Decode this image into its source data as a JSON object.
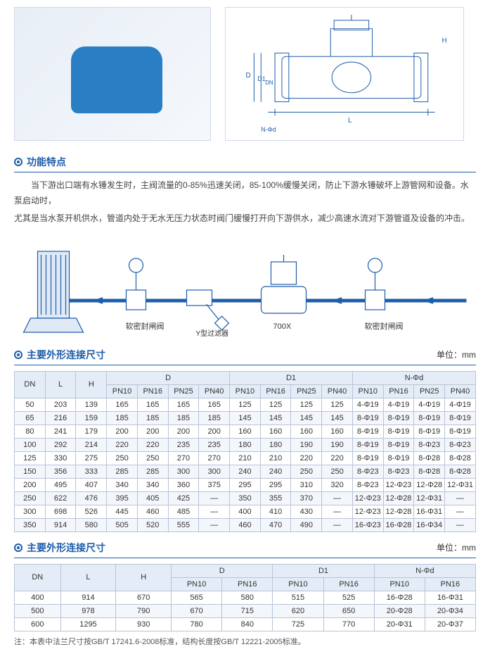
{
  "sections": {
    "features_title": "功能特点",
    "features_p1": "当下游出口端有水锤发生时，主阀流量的0-85%迅速关闭，85-100%缓慢关闭，防止下游水锤破坏上游管网和设备。水泵启动时，",
    "features_p2": "尤其是当水泵开机供水，管道内处于无水无压力状态时阀门缓慢打开向下游供水，减少高速水流对下游管道及设备的冲击。",
    "dim_title": "主要外形连接尺寸",
    "unit_label": "单位：mm"
  },
  "schematic": {
    "label_left": "软密封闸阀",
    "label_filter": "Y型过滤器",
    "label_center": "700X",
    "label_right": "软密封闸阀"
  },
  "table1": {
    "headers": {
      "dn": "DN",
      "l": "L",
      "h": "H",
      "d": "D",
      "d1": "D1",
      "nphi": "N-Φd",
      "pn10": "PN10",
      "pn16": "PN16",
      "pn25": "PN25",
      "pn40": "PN40"
    },
    "rows": [
      {
        "dn": "50",
        "l": "203",
        "h": "139",
        "d": [
          "165",
          "165",
          "165",
          "165"
        ],
        "d1": [
          "125",
          "125",
          "125",
          "125"
        ],
        "n": [
          "4-Φ19",
          "4-Φ19",
          "4-Φ19",
          "4-Φ19"
        ]
      },
      {
        "dn": "65",
        "l": "216",
        "h": "159",
        "d": [
          "185",
          "185",
          "185",
          "185"
        ],
        "d1": [
          "145",
          "145",
          "145",
          "145"
        ],
        "n": [
          "8-Φ19",
          "8-Φ19",
          "8-Φ19",
          "8-Φ19"
        ]
      },
      {
        "dn": "80",
        "l": "241",
        "h": "179",
        "d": [
          "200",
          "200",
          "200",
          "200"
        ],
        "d1": [
          "160",
          "160",
          "160",
          "160"
        ],
        "n": [
          "8-Φ19",
          "8-Φ19",
          "8-Φ19",
          "8-Φ19"
        ]
      },
      {
        "dn": "100",
        "l": "292",
        "h": "214",
        "d": [
          "220",
          "220",
          "235",
          "235"
        ],
        "d1": [
          "180",
          "180",
          "190",
          "190"
        ],
        "n": [
          "8-Φ19",
          "8-Φ19",
          "8-Φ23",
          "8-Φ23"
        ]
      },
      {
        "dn": "125",
        "l": "330",
        "h": "275",
        "d": [
          "250",
          "250",
          "270",
          "270"
        ],
        "d1": [
          "210",
          "210",
          "220",
          "220"
        ],
        "n": [
          "8-Φ19",
          "8-Φ19",
          "8-Φ28",
          "8-Φ28"
        ]
      },
      {
        "dn": "150",
        "l": "356",
        "h": "333",
        "d": [
          "285",
          "285",
          "300",
          "300"
        ],
        "d1": [
          "240",
          "240",
          "250",
          "250"
        ],
        "n": [
          "8-Φ23",
          "8-Φ23",
          "8-Φ28",
          "8-Φ28"
        ]
      },
      {
        "dn": "200",
        "l": "495",
        "h": "407",
        "d": [
          "340",
          "340",
          "360",
          "375"
        ],
        "d1": [
          "295",
          "295",
          "310",
          "320"
        ],
        "n": [
          "8-Φ23",
          "12-Φ23",
          "12-Φ28",
          "12-Φ31"
        ]
      },
      {
        "dn": "250",
        "l": "622",
        "h": "476",
        "d": [
          "395",
          "405",
          "425",
          "—"
        ],
        "d1": [
          "350",
          "355",
          "370",
          "—"
        ],
        "n": [
          "12-Φ23",
          "12-Φ28",
          "12-Φ31",
          "—"
        ]
      },
      {
        "dn": "300",
        "l": "698",
        "h": "526",
        "d": [
          "445",
          "460",
          "485",
          "—"
        ],
        "d1": [
          "400",
          "410",
          "430",
          "—"
        ],
        "n": [
          "12-Φ23",
          "12-Φ28",
          "16-Φ31",
          "—"
        ]
      },
      {
        "dn": "350",
        "l": "914",
        "h": "580",
        "d": [
          "505",
          "520",
          "555",
          "—"
        ],
        "d1": [
          "460",
          "470",
          "490",
          "—"
        ],
        "n": [
          "16-Φ23",
          "16-Φ28",
          "16-Φ34",
          "—"
        ]
      }
    ]
  },
  "table2": {
    "rows": [
      {
        "dn": "400",
        "l": "914",
        "h": "670",
        "d": [
          "565",
          "580"
        ],
        "d1": [
          "515",
          "525"
        ],
        "n": [
          "16-Φ28",
          "16-Φ31"
        ]
      },
      {
        "dn": "500",
        "l": "978",
        "h": "790",
        "d": [
          "670",
          "715"
        ],
        "d1": [
          "620",
          "650"
        ],
        "n": [
          "20-Φ28",
          "20-Φ34"
        ]
      },
      {
        "dn": "600",
        "l": "1295",
        "h": "930",
        "d": [
          "780",
          "840"
        ],
        "d1": [
          "725",
          "770"
        ],
        "n": [
          "20-Φ31",
          "20-Φ37"
        ]
      }
    ]
  },
  "footnote": "注：本表中法兰尺寸按GB/T 17241.6-2008标准，结构长度按GB/T 12221-2005标准。",
  "colors": {
    "accent": "#1e5daa",
    "border": "#b8c4d6",
    "head_bg": "#e4ecf7",
    "row_alt": "#f3f6fb",
    "valve_blue": "#2a7fc4"
  }
}
